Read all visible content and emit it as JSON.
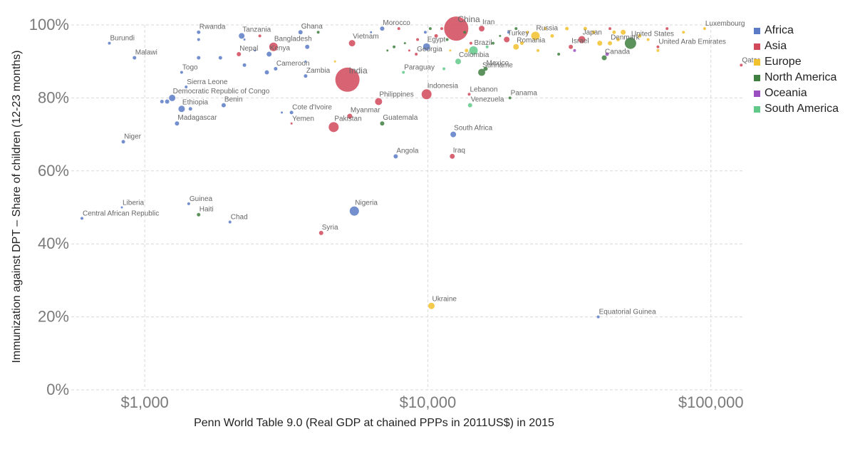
{
  "chart_data": {
    "type": "scatter",
    "xlabel": "Penn World Table 9.0 (Real GDP at chained PPPs in 2011US$) in 2015",
    "ylabel": "Immunization against DPT – Share of children (12-23 months)",
    "x_scale": "log",
    "xlim": [
      550,
      130000
    ],
    "ylim": [
      0,
      100
    ],
    "x_ticks": [
      {
        "value": 1000,
        "label": "$1,000"
      },
      {
        "value": 10000,
        "label": "$10,000"
      },
      {
        "value": 100000,
        "label": "$100,000"
      }
    ],
    "y_ticks": [
      {
        "value": 0,
        "label": "0%"
      },
      {
        "value": 20,
        "label": "20%"
      },
      {
        "value": 40,
        "label": "40%"
      },
      {
        "value": 60,
        "label": "60%"
      },
      {
        "value": 80,
        "label": "80%"
      },
      {
        "value": 100,
        "label": "100%"
      }
    ],
    "grid": true,
    "legend_position": "right",
    "series": [
      {
        "name": "Africa",
        "color": "#5b7bc6"
      },
      {
        "name": "Asia",
        "color": "#d1495b"
      },
      {
        "name": "Europe",
        "color": "#f2c12e"
      },
      {
        "name": "North America",
        "color": "#3f7f3f"
      },
      {
        "name": "Oceania",
        "color": "#9b4fc0"
      },
      {
        "name": "South America",
        "color": "#62c98a"
      }
    ],
    "points": [
      {
        "label": "Burundi",
        "x": 750,
        "y": 95,
        "r": 2,
        "series": "Africa"
      },
      {
        "label": "Malawi",
        "x": 920,
        "y": 91,
        "r": 2.5,
        "series": "Africa"
      },
      {
        "label": "Rwanda",
        "x": 1550,
        "y": 98,
        "r": 2.5,
        "series": "Africa"
      },
      {
        "label": "Tanzania",
        "x": 2200,
        "y": 97,
        "r": 4,
        "series": "Africa"
      },
      {
        "label": "Bangladesh",
        "x": 2850,
        "y": 94,
        "r": 6,
        "series": "Asia"
      },
      {
        "label": "Ghana",
        "x": 3550,
        "y": 98,
        "r": 3,
        "series": "Africa"
      },
      {
        "label": "Vietnam",
        "x": 5400,
        "y": 95,
        "r": 4.5,
        "series": "Asia"
      },
      {
        "label": "Morocco",
        "x": 6900,
        "y": 99,
        "r": 3,
        "series": "Africa"
      },
      {
        "label": "Egypt",
        "x": 9900,
        "y": 94,
        "r": 5,
        "series": "Africa"
      },
      {
        "label": "China",
        "x": 12600,
        "y": 99,
        "r": 17,
        "series": "Asia"
      },
      {
        "label": "Iran",
        "x": 15500,
        "y": 99,
        "r": 4,
        "series": "Asia"
      },
      {
        "label": "Turkey",
        "x": 19000,
        "y": 96,
        "r": 4,
        "series": "Asia"
      },
      {
        "label": "Russia",
        "x": 24000,
        "y": 97,
        "r": 6,
        "series": "Europe"
      },
      {
        "label": "Japan",
        "x": 35000,
        "y": 96,
        "r": 5,
        "series": "Asia"
      },
      {
        "label": "United States",
        "x": 52000,
        "y": 95,
        "r": 8,
        "series": "North America"
      },
      {
        "label": "Luxembourg",
        "x": 95000,
        "y": 99,
        "r": 2,
        "series": "Europe"
      },
      {
        "label": "Nepal",
        "x": 2150,
        "y": 92,
        "r": 3,
        "series": "Asia"
      },
      {
        "label": "Kenya",
        "x": 2750,
        "y": 92,
        "r": 3.5,
        "series": "Africa"
      },
      {
        "label": "Georgia",
        "x": 9100,
        "y": 92,
        "r": 2,
        "series": "Asia"
      },
      {
        "label": "Brazil",
        "x": 14500,
        "y": 93,
        "r": 6,
        "series": "South America"
      },
      {
        "label": "Romania",
        "x": 20500,
        "y": 94,
        "r": 4,
        "series": "Europe"
      },
      {
        "label": "Israel",
        "x": 32000,
        "y": 94,
        "r": 3,
        "series": "Asia"
      },
      {
        "label": "Denmark",
        "x": 44000,
        "y": 95,
        "r": 3,
        "series": "Europe"
      },
      {
        "label": "United Arab Emirates",
        "x": 65000,
        "y": 94,
        "r": 2,
        "series": "Asia"
      },
      {
        "label": "Canada",
        "x": 42000,
        "y": 91,
        "r": 3.5,
        "series": "North America"
      },
      {
        "label": "Qatar",
        "x": 128000,
        "y": 89,
        "r": 2,
        "series": "Asia"
      },
      {
        "label": "India",
        "x": 5200,
        "y": 85,
        "r": 17,
        "series": "Asia"
      },
      {
        "label": "Togo",
        "x": 1350,
        "y": 87,
        "r": 2,
        "series": "Africa"
      },
      {
        "label": "Cameroon",
        "x": 2900,
        "y": 88,
        "r": 2.5,
        "series": "Africa"
      },
      {
        "label": "Zambia",
        "x": 3700,
        "y": 86,
        "r": 2.5,
        "series": "Africa"
      },
      {
        "label": "Paraguay",
        "x": 8200,
        "y": 87,
        "r": 2,
        "series": "South America"
      },
      {
        "label": "Colombia",
        "x": 12800,
        "y": 90,
        "r": 4,
        "series": "South America"
      },
      {
        "label": "Mexico",
        "x": 16000,
        "y": 88,
        "r": 3,
        "series": "North America"
      },
      {
        "label": "Suriname",
        "x": 15500,
        "y": 87,
        "r": 5,
        "series": "North America"
      },
      {
        "label": "Sierra Leone",
        "x": 1400,
        "y": 83,
        "r": 2,
        "series": "Africa"
      },
      {
        "label": "Democratic Republic of Congo",
        "x": 1250,
        "y": 80,
        "r": 4.5,
        "series": "Africa"
      },
      {
        "label": "Philippines",
        "x": 6700,
        "y": 79,
        "r": 5,
        "series": "Asia"
      },
      {
        "label": "Indonesia",
        "x": 9900,
        "y": 81,
        "r": 7,
        "series": "Asia"
      },
      {
        "label": "Lebanon",
        "x": 14000,
        "y": 81,
        "r": 2,
        "series": "Asia"
      },
      {
        "label": "Panama",
        "x": 19500,
        "y": 80,
        "r": 2,
        "series": "North America"
      },
      {
        "label": "Venezuela",
        "x": 14100,
        "y": 78,
        "r": 3,
        "series": "South America"
      },
      {
        "label": "Ethiopia",
        "x": 1350,
        "y": 77,
        "r": 4.5,
        "series": "Africa"
      },
      {
        "label": "Benin",
        "x": 1900,
        "y": 78,
        "r": 3,
        "series": "Africa"
      },
      {
        "label": "Cote d'Ivoire",
        "x": 3300,
        "y": 76,
        "r": 2.5,
        "series": "Africa"
      },
      {
        "label": "Myanmar",
        "x": 5300,
        "y": 75,
        "r": 3.5,
        "series": "Asia"
      },
      {
        "label": "Madagascar",
        "x": 1300,
        "y": 73,
        "r": 3,
        "series": "Africa"
      },
      {
        "label": "Yemen",
        "x": 3300,
        "y": 73,
        "r": 1.5,
        "series": "Asia"
      },
      {
        "label": "Pakistan",
        "x": 4650,
        "y": 72,
        "r": 7,
        "series": "Asia"
      },
      {
        "label": "Guatemala",
        "x": 6900,
        "y": 73,
        "r": 3,
        "series": "North America"
      },
      {
        "label": "South Africa",
        "x": 12300,
        "y": 70,
        "r": 4,
        "series": "Africa"
      },
      {
        "label": "Niger",
        "x": 840,
        "y": 68,
        "r": 2.5,
        "series": "Africa"
      },
      {
        "label": "Angola",
        "x": 7700,
        "y": 64,
        "r": 3,
        "series": "Africa"
      },
      {
        "label": "Iraq",
        "x": 12200,
        "y": 64,
        "r": 3.5,
        "series": "Asia"
      },
      {
        "label": "Liberia",
        "x": 830,
        "y": 50,
        "r": 1.5,
        "series": "Africa"
      },
      {
        "label": "Central African Republic",
        "x": 600,
        "y": 47,
        "r": 2,
        "series": "Africa"
      },
      {
        "label": "Guinea",
        "x": 1430,
        "y": 51,
        "r": 2,
        "series": "Africa"
      },
      {
        "label": "Haiti",
        "x": 1550,
        "y": 48,
        "r": 2.5,
        "series": "North America"
      },
      {
        "label": "Chad",
        "x": 2000,
        "y": 46,
        "r": 2,
        "series": "Africa"
      },
      {
        "label": "Nigeria",
        "x": 5500,
        "y": 49,
        "r": 6.5,
        "series": "Africa"
      },
      {
        "label": "Syria",
        "x": 4200,
        "y": 43,
        "r": 3,
        "series": "Asia"
      },
      {
        "label": "Ukraine",
        "x": 10300,
        "y": 23,
        "r": 4.5,
        "series": "Europe"
      },
      {
        "label": "Equatorial Guinea",
        "x": 40000,
        "y": 20,
        "r": 2,
        "series": "Africa"
      },
      {
        "label": "",
        "x": 1200,
        "y": 79,
        "r": 3,
        "series": "Africa"
      },
      {
        "label": "",
        "x": 1150,
        "y": 79,
        "r": 2.5,
        "series": "Africa"
      },
      {
        "label": "",
        "x": 1450,
        "y": 77,
        "r": 2.5,
        "series": "Africa"
      },
      {
        "label": "",
        "x": 1550,
        "y": 91,
        "r": 2.5,
        "series": "Africa"
      },
      {
        "label": "",
        "x": 1550,
        "y": 96,
        "r": 2,
        "series": "Africa"
      },
      {
        "label": "",
        "x": 1850,
        "y": 91,
        "r": 2.5,
        "series": "Africa"
      },
      {
        "label": "",
        "x": 2250,
        "y": 89,
        "r": 2.5,
        "series": "Africa"
      },
      {
        "label": "",
        "x": 2700,
        "y": 87,
        "r": 3,
        "series": "Africa"
      },
      {
        "label": "",
        "x": 3050,
        "y": 76,
        "r": 1.5,
        "series": "Africa"
      },
      {
        "label": "",
        "x": 3750,
        "y": 94,
        "r": 3,
        "series": "Africa"
      },
      {
        "label": "",
        "x": 3700,
        "y": 90,
        "r": 1.5,
        "series": "Africa"
      },
      {
        "label": "",
        "x": 4100,
        "y": 98,
        "r": 2,
        "series": "North America"
      },
      {
        "label": "",
        "x": 2450,
        "y": 93,
        "r": 1.5,
        "series": "Africa"
      },
      {
        "label": "",
        "x": 2250,
        "y": 96,
        "r": 1.5,
        "series": "Africa"
      },
      {
        "label": "",
        "x": 2550,
        "y": 97,
        "r": 2,
        "series": "Asia"
      },
      {
        "label": "",
        "x": 4700,
        "y": 90,
        "r": 1.5,
        "series": "Europe"
      },
      {
        "label": "",
        "x": 6300,
        "y": 98,
        "r": 1.5,
        "series": "Africa"
      },
      {
        "label": "",
        "x": 7200,
        "y": 93,
        "r": 1.5,
        "series": "North America"
      },
      {
        "label": "",
        "x": 7600,
        "y": 94,
        "r": 2,
        "series": "North America"
      },
      {
        "label": "",
        "x": 7900,
        "y": 99,
        "r": 2,
        "series": "Asia"
      },
      {
        "label": "",
        "x": 8300,
        "y": 95,
        "r": 1.5,
        "series": "North America"
      },
      {
        "label": "",
        "x": 8600,
        "y": 93,
        "r": 1.5,
        "series": "Asia"
      },
      {
        "label": "",
        "x": 9200,
        "y": 96,
        "r": 2,
        "series": "Asia"
      },
      {
        "label": "",
        "x": 9800,
        "y": 98,
        "r": 2,
        "series": "Africa"
      },
      {
        "label": "",
        "x": 10200,
        "y": 99,
        "r": 2,
        "series": "North America"
      },
      {
        "label": "",
        "x": 10700,
        "y": 97,
        "r": 2.5,
        "series": "Asia"
      },
      {
        "label": "",
        "x": 11200,
        "y": 99,
        "r": 2,
        "series": "Asia"
      },
      {
        "label": "",
        "x": 11400,
        "y": 88,
        "r": 2,
        "series": "South America"
      },
      {
        "label": "",
        "x": 11700,
        "y": 96,
        "r": 2,
        "series": "North America"
      },
      {
        "label": "",
        "x": 12000,
        "y": 93,
        "r": 1.5,
        "series": "Europe"
      },
      {
        "label": "",
        "x": 13500,
        "y": 98,
        "r": 2,
        "series": "North America"
      },
      {
        "label": "",
        "x": 13700,
        "y": 93,
        "r": 2.5,
        "series": "Europe"
      },
      {
        "label": "",
        "x": 14200,
        "y": 95,
        "r": 2,
        "series": "Asia"
      },
      {
        "label": "",
        "x": 16200,
        "y": 94,
        "r": 2,
        "series": "South America"
      },
      {
        "label": "",
        "x": 17000,
        "y": 95,
        "r": 2,
        "series": "North America"
      },
      {
        "label": "",
        "x": 18000,
        "y": 97,
        "r": 1.5,
        "series": "North America"
      },
      {
        "label": "",
        "x": 19300,
        "y": 98,
        "r": 2,
        "series": "Africa"
      },
      {
        "label": "",
        "x": 20500,
        "y": 99,
        "r": 2,
        "series": "North America"
      },
      {
        "label": "",
        "x": 21500,
        "y": 95,
        "r": 2.5,
        "series": "Europe"
      },
      {
        "label": "",
        "x": 22500,
        "y": 98,
        "r": 2,
        "series": "Europe"
      },
      {
        "label": "",
        "x": 24500,
        "y": 93,
        "r": 2,
        "series": "Europe"
      },
      {
        "label": "",
        "x": 26000,
        "y": 99,
        "r": 2,
        "series": "Europe"
      },
      {
        "label": "",
        "x": 27500,
        "y": 97,
        "r": 2.5,
        "series": "Europe"
      },
      {
        "label": "",
        "x": 29000,
        "y": 92,
        "r": 2,
        "series": "North America"
      },
      {
        "label": "",
        "x": 31000,
        "y": 99,
        "r": 2.5,
        "series": "Europe"
      },
      {
        "label": "",
        "x": 33000,
        "y": 93,
        "r": 2,
        "series": "Oceania"
      },
      {
        "label": "",
        "x": 36000,
        "y": 99,
        "r": 2.5,
        "series": "Europe"
      },
      {
        "label": "",
        "x": 38500,
        "y": 98,
        "r": 2.5,
        "series": "Europe"
      },
      {
        "label": "",
        "x": 40500,
        "y": 95,
        "r": 3.5,
        "series": "Europe"
      },
      {
        "label": "",
        "x": 43000,
        "y": 92,
        "r": 2.5,
        "series": "Oceania"
      },
      {
        "label": "",
        "x": 44000,
        "y": 99,
        "r": 2,
        "series": "Asia"
      },
      {
        "label": "",
        "x": 45500,
        "y": 98,
        "r": 2.5,
        "series": "Europe"
      },
      {
        "label": "",
        "x": 47000,
        "y": 96,
        "r": 2.5,
        "series": "Europe"
      },
      {
        "label": "",
        "x": 49000,
        "y": 98,
        "r": 3.5,
        "series": "Europe"
      },
      {
        "label": "",
        "x": 56000,
        "y": 97,
        "r": 2.5,
        "series": "Europe"
      },
      {
        "label": "",
        "x": 60000,
        "y": 96,
        "r": 2,
        "series": "Europe"
      },
      {
        "label": "",
        "x": 65000,
        "y": 93,
        "r": 2,
        "series": "Europe"
      },
      {
        "label": "",
        "x": 70000,
        "y": 99,
        "r": 2,
        "series": "Asia"
      },
      {
        "label": "",
        "x": 80000,
        "y": 98,
        "r": 2,
        "series": "Europe"
      }
    ]
  }
}
